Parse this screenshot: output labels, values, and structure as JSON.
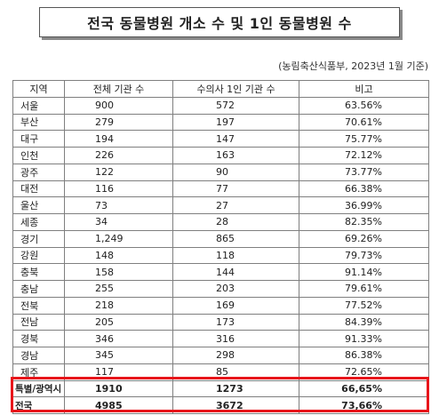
{
  "title": "전국 동물병원 개소 수 및 1인 동물병원 수",
  "source": "(농림축산식품부, 2023년 1월 기준)",
  "table": {
    "headers": [
      "지역",
      "전체 기관 수",
      "수의사 1인 기관 수",
      "비고"
    ],
    "rows": [
      [
        "서울",
        "900",
        "572",
        "63.56%"
      ],
      [
        "부산",
        "279",
        "197",
        "70.61%"
      ],
      [
        "대구",
        "194",
        "147",
        "75.77%"
      ],
      [
        "인천",
        "226",
        "163",
        "72.12%"
      ],
      [
        "광주",
        "122",
        "90",
        "73.77%"
      ],
      [
        "대전",
        "116",
        "77",
        "66.38%"
      ],
      [
        "울산",
        "73",
        "27",
        "36.99%"
      ],
      [
        "세종",
        "34",
        "28",
        "82.35%"
      ],
      [
        "경기",
        "1,249",
        "865",
        "69.26%"
      ],
      [
        "강원",
        "148",
        "118",
        "79.73%"
      ],
      [
        "충북",
        "158",
        "144",
        "91.14%"
      ],
      [
        "충남",
        "255",
        "203",
        "79.61%"
      ],
      [
        "전북",
        "218",
        "169",
        "77.52%"
      ],
      [
        "전남",
        "205",
        "173",
        "84.39%"
      ],
      [
        "경북",
        "346",
        "316",
        "91.33%"
      ],
      [
        "경남",
        "345",
        "298",
        "86.38%"
      ],
      [
        "제주",
        "117",
        "85",
        "72.65%"
      ]
    ],
    "summary_rows": [
      [
        "특별/광역시",
        "1910",
        "1273",
        "66,65%"
      ],
      [
        "전국",
        "4985",
        "3672",
        "73,66%"
      ]
    ]
  },
  "colors": {
    "highlight_border": "#e8151b",
    "grid": "#7f7f7f"
  }
}
